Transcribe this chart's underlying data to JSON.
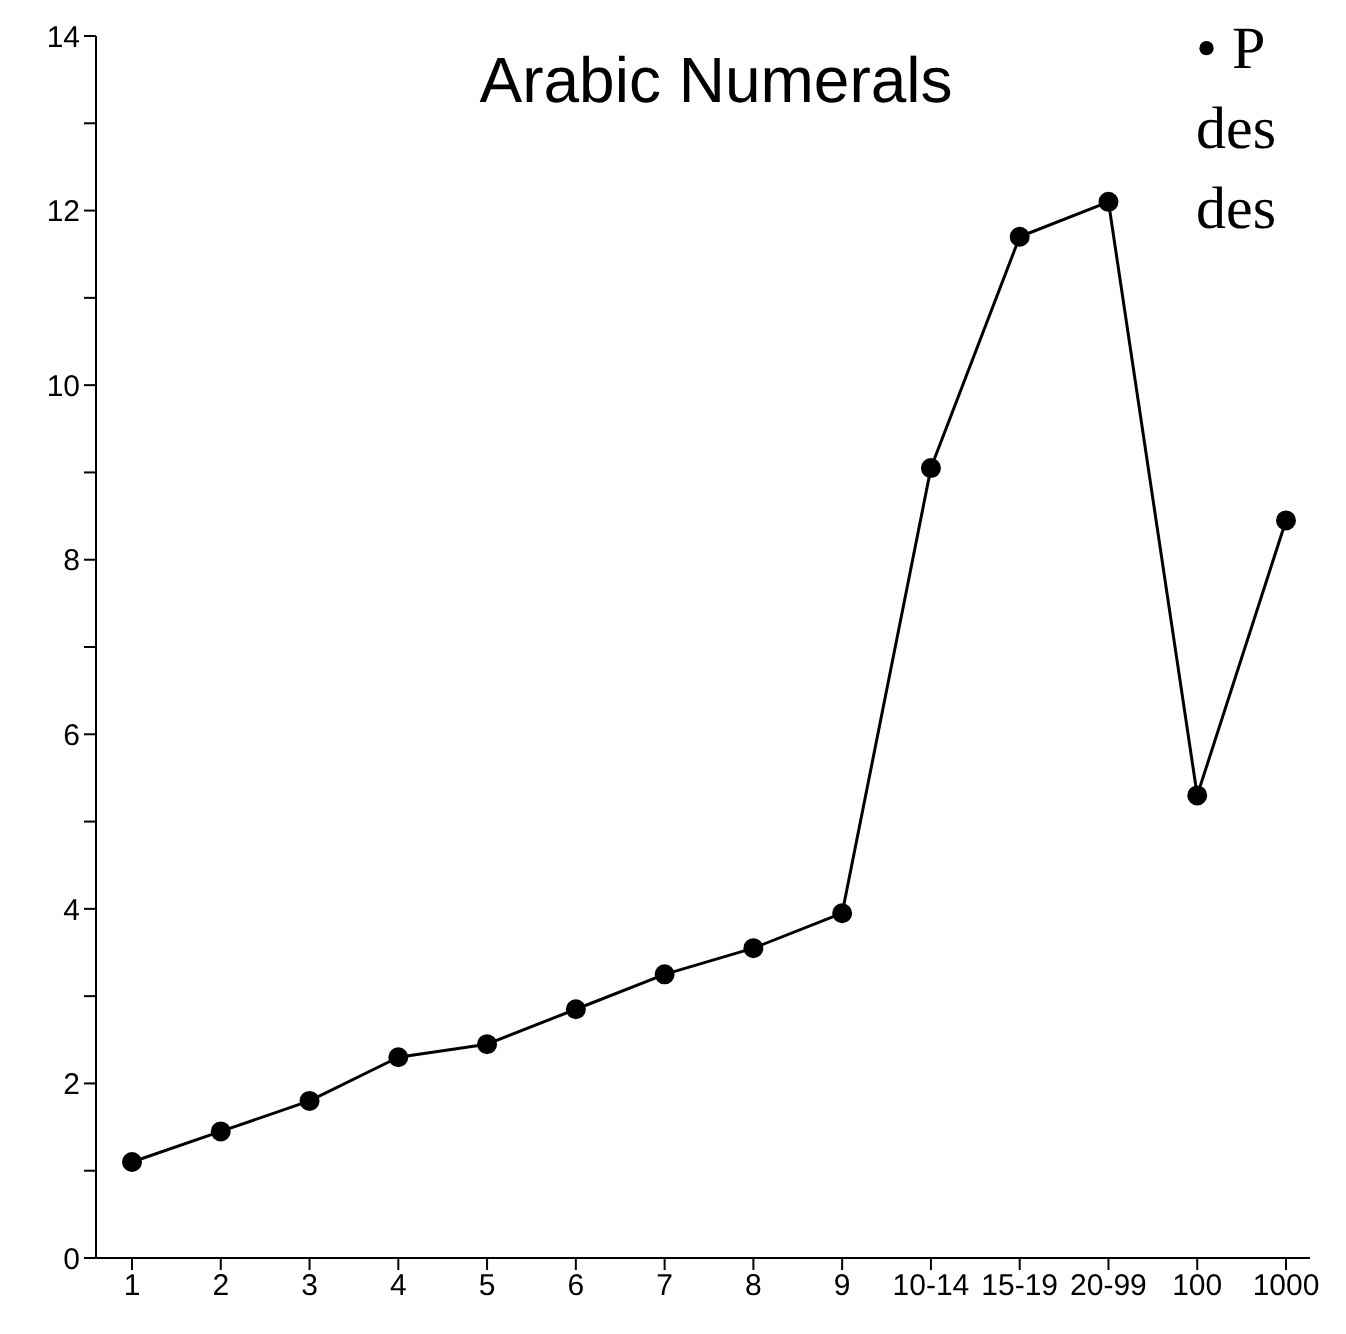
{
  "chart_data": {
    "type": "line",
    "title": "Arabic Numerals",
    "categories": [
      "1",
      "2",
      "3",
      "4",
      "5",
      "6",
      "7",
      "8",
      "9",
      "10-14",
      "15-19",
      "20-99",
      "100",
      "1000"
    ],
    "series": [
      {
        "color": "#000000",
        "values": [
          1.1,
          1.45,
          1.8,
          2.3,
          2.45,
          2.85,
          3.25,
          3.55,
          3.95,
          9.05,
          11.7,
          12.1,
          5.3,
          8.45
        ]
      }
    ],
    "ylim": [
      0,
      14
    ],
    "yticks": [
      0,
      {
        "value": 1,
        "label": null
      },
      2,
      {
        "value": 3,
        "label": null
      },
      4,
      {
        "value": 5,
        "label": null
      },
      6,
      {
        "value": 7,
        "label": null
      },
      8,
      {
        "value": 9,
        "label": null
      },
      10,
      {
        "value": 11,
        "label": null
      },
      12,
      {
        "value": 13,
        "label": null
      },
      14
    ],
    "marker": "circle",
    "line_style": "solid",
    "annotations": [
      "• P",
      "des",
      "des"
    ]
  }
}
